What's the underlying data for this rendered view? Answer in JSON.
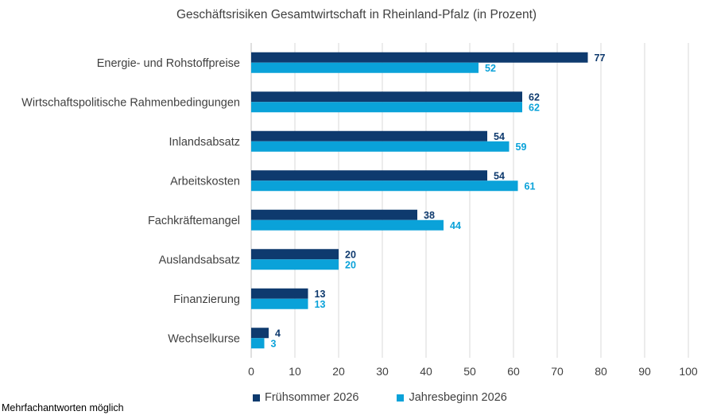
{
  "chart_data": {
    "type": "bar",
    "orientation": "horizontal",
    "title": "Geschäftsrisiken Gesamtwirtschaft in Rheinland-Pfalz (in Prozent)",
    "categories": [
      "Energie- und Rohstoffpreise",
      "Wirtschaftspolitische Rahmenbedingungen",
      "Inlandsabsatz",
      "Arbeitskosten",
      "Fachkräftemangel",
      "Auslandsabsatz",
      "Finanzierung",
      "Wechselkurse"
    ],
    "series": [
      {
        "name": "Frühsommer 2026",
        "color": "#0e3a6e",
        "values": [
          77,
          62,
          54,
          54,
          38,
          20,
          13,
          4
        ]
      },
      {
        "name": "Jahresbeginn 2026",
        "color": "#0aa2d9",
        "values": [
          52,
          62,
          59,
          61,
          44,
          20,
          13,
          3
        ]
      }
    ],
    "xlim": [
      0,
      100
    ],
    "xticks": [
      "0",
      "10",
      "20",
      "30",
      "40",
      "50",
      "60",
      "70",
      "80",
      "90",
      "100"
    ],
    "grid": true,
    "legend_position": "bottom"
  },
  "footnote": "Mehrfachantworten möglich"
}
